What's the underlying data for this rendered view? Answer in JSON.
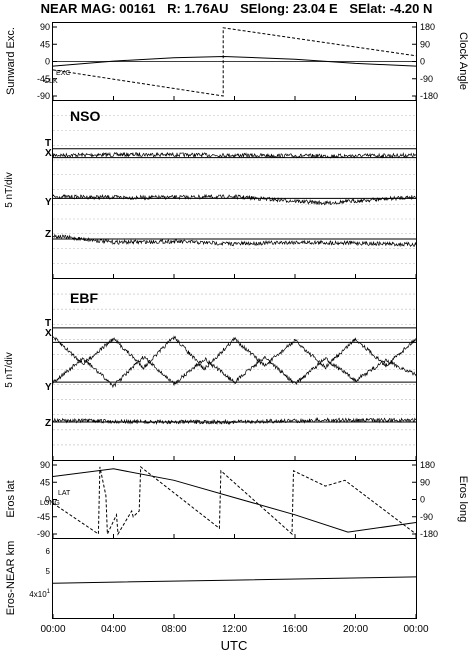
{
  "title": {
    "mission": "NEAR MAG: 00161",
    "distance": "R: 1.76AU",
    "selong": "SElong:   23.04 E",
    "selat": "SElat:   -4.20 N"
  },
  "colors": {
    "ink": "#000000",
    "grid": "#bbbbbb"
  },
  "xaxis": {
    "label": "UTC",
    "ticks": [
      "00:00",
      "04:00",
      "08:00",
      "12:00",
      "16:00",
      "20:00",
      "00:00"
    ],
    "range_hours": [
      0,
      24
    ]
  },
  "panels": {
    "panel1": {
      "ylabel_left": "Sunward Exc.",
      "ylabel_right": "Clock Angle",
      "left_ticks": [
        "90",
        "45",
        "0",
        "-45",
        "-90"
      ],
      "right_ticks": [
        "180",
        "90",
        "0",
        "-90",
        "-180"
      ],
      "legend": [
        "EXC",
        "CLK"
      ]
    },
    "panel2": {
      "label": "NSO",
      "ylabel": "5 nT/div",
      "trace_labels": [
        "T",
        "X",
        "Y",
        "Z"
      ]
    },
    "panel3": {
      "label": "EBF",
      "ylabel": "5 nT/div",
      "trace_labels": [
        "T",
        "X",
        "Y",
        "Z"
      ]
    },
    "panel4": {
      "ylabel_left": "Eros lat",
      "ylabel_right": "Eros long",
      "left_ticks": [
        "90",
        "45",
        "0",
        "-45",
        "-90"
      ],
      "right_ticks": [
        "180",
        "90",
        "0",
        "-90",
        "-180"
      ],
      "legend": [
        "LAT",
        "LONG"
      ]
    },
    "panel5": {
      "ylabel": "Eros-NEAR km",
      "ticks": [
        "6",
        "5",
        "4x10"
      ],
      "tick_sup": "1"
    }
  },
  "chart_data": [
    {
      "type": "line",
      "panel": "Sunward Exc. / Clock Angle",
      "x_unit": "hours UTC",
      "ylim_left": [
        -90,
        90
      ],
      "ylim_right": [
        -180,
        180
      ],
      "series": [
        {
          "name": "EXC",
          "axis": "left",
          "x": [
            0,
            4,
            8,
            11.3,
            16,
            20,
            24
          ],
          "y": [
            -12,
            1,
            10,
            13,
            6,
            -5,
            -12
          ]
        },
        {
          "name": "CLK",
          "axis": "left",
          "x": [
            0,
            11.25,
            11.25,
            24
          ],
          "y": [
            -22,
            -90,
            88,
            15
          ]
        }
      ]
    },
    {
      "type": "line",
      "panel": "NSO",
      "x_unit": "hours UTC",
      "ylabel": "5 nT/div",
      "series": [
        {
          "name": "T",
          "x": [
            0,
            24
          ],
          "y": [
            0,
            0
          ]
        },
        {
          "name": "X",
          "x": [
            0,
            6,
            12,
            18,
            24
          ],
          "y": [
            0.3,
            0.4,
            0.3,
            0.2,
            0.3
          ]
        },
        {
          "name": "Y",
          "x": [
            0,
            6,
            12,
            18,
            24
          ],
          "y": [
            0.2,
            0.1,
            0.2,
            -0.6,
            0.2
          ]
        },
        {
          "name": "Z",
          "x": [
            0,
            4,
            8,
            12,
            16,
            20,
            24
          ],
          "y": [
            0.4,
            -0.4,
            -0.3,
            -0.6,
            -0.4,
            -0.5,
            -0.7
          ]
        }
      ]
    },
    {
      "type": "line",
      "panel": "EBF",
      "x_unit": "hours UTC",
      "ylabel": "5 nT/div",
      "series": [
        {
          "name": "T",
          "x": [
            0,
            24
          ],
          "y": [
            0,
            0
          ]
        },
        {
          "name": "X",
          "x": [
            0,
            2,
            4,
            6,
            8,
            10,
            12,
            14,
            16,
            18,
            20,
            22,
            24
          ],
          "y": [
            0.3,
            -1.2,
            0.2,
            -1.4,
            0.3,
            -1.5,
            0.2,
            -1.3,
            0.1,
            -1.4,
            0.2,
            -1.3,
            0.2
          ]
        },
        {
          "name": "Y",
          "x": [
            0,
            2,
            4,
            6,
            8,
            10,
            12,
            14,
            16,
            18,
            20,
            22,
            24
          ],
          "y": [
            0,
            1.3,
            -0.2,
            1.4,
            -0.1,
            1.3,
            0,
            1.4,
            -0.1,
            1.3,
            0.1,
            1.2,
            0.4
          ]
        },
        {
          "name": "Z",
          "x": [
            0,
            6,
            12,
            18,
            24
          ],
          "y": [
            0.1,
            0,
            0,
            0.1,
            0.1
          ]
        }
      ]
    },
    {
      "type": "line",
      "panel": "Eros lat / Eros long",
      "x_unit": "hours UTC",
      "ylim_left": [
        -90,
        90
      ],
      "ylim_right": [
        -180,
        180
      ],
      "series": [
        {
          "name": "LAT",
          "axis": "left",
          "x": [
            0,
            4,
            8,
            12,
            16,
            19.5,
            24
          ],
          "y": [
            60,
            80,
            50,
            5,
            -40,
            -85,
            -60
          ]
        },
        {
          "name": "LONG",
          "axis": "right",
          "x": [
            0,
            3,
            3.1,
            3.5,
            3.6,
            4.2,
            4.3,
            5.2,
            5.3,
            5.7,
            5.8,
            11,
            11.1,
            15.8,
            15.9,
            18,
            19.3,
            24
          ],
          "y": [
            -20,
            -180,
            170,
            20,
            -180,
            -80,
            -180,
            -60,
            -90,
            -60,
            170,
            -150,
            150,
            -180,
            150,
            70,
            100,
            -180
          ]
        }
      ]
    },
    {
      "type": "line",
      "panel": "Eros-NEAR km",
      "x_unit": "hours UTC",
      "y_unit": "log10 km",
      "series": [
        {
          "name": "Eros-NEAR",
          "x": [
            0,
            12,
            24
          ],
          "y": [
            51,
            52,
            53
          ]
        }
      ]
    }
  ]
}
